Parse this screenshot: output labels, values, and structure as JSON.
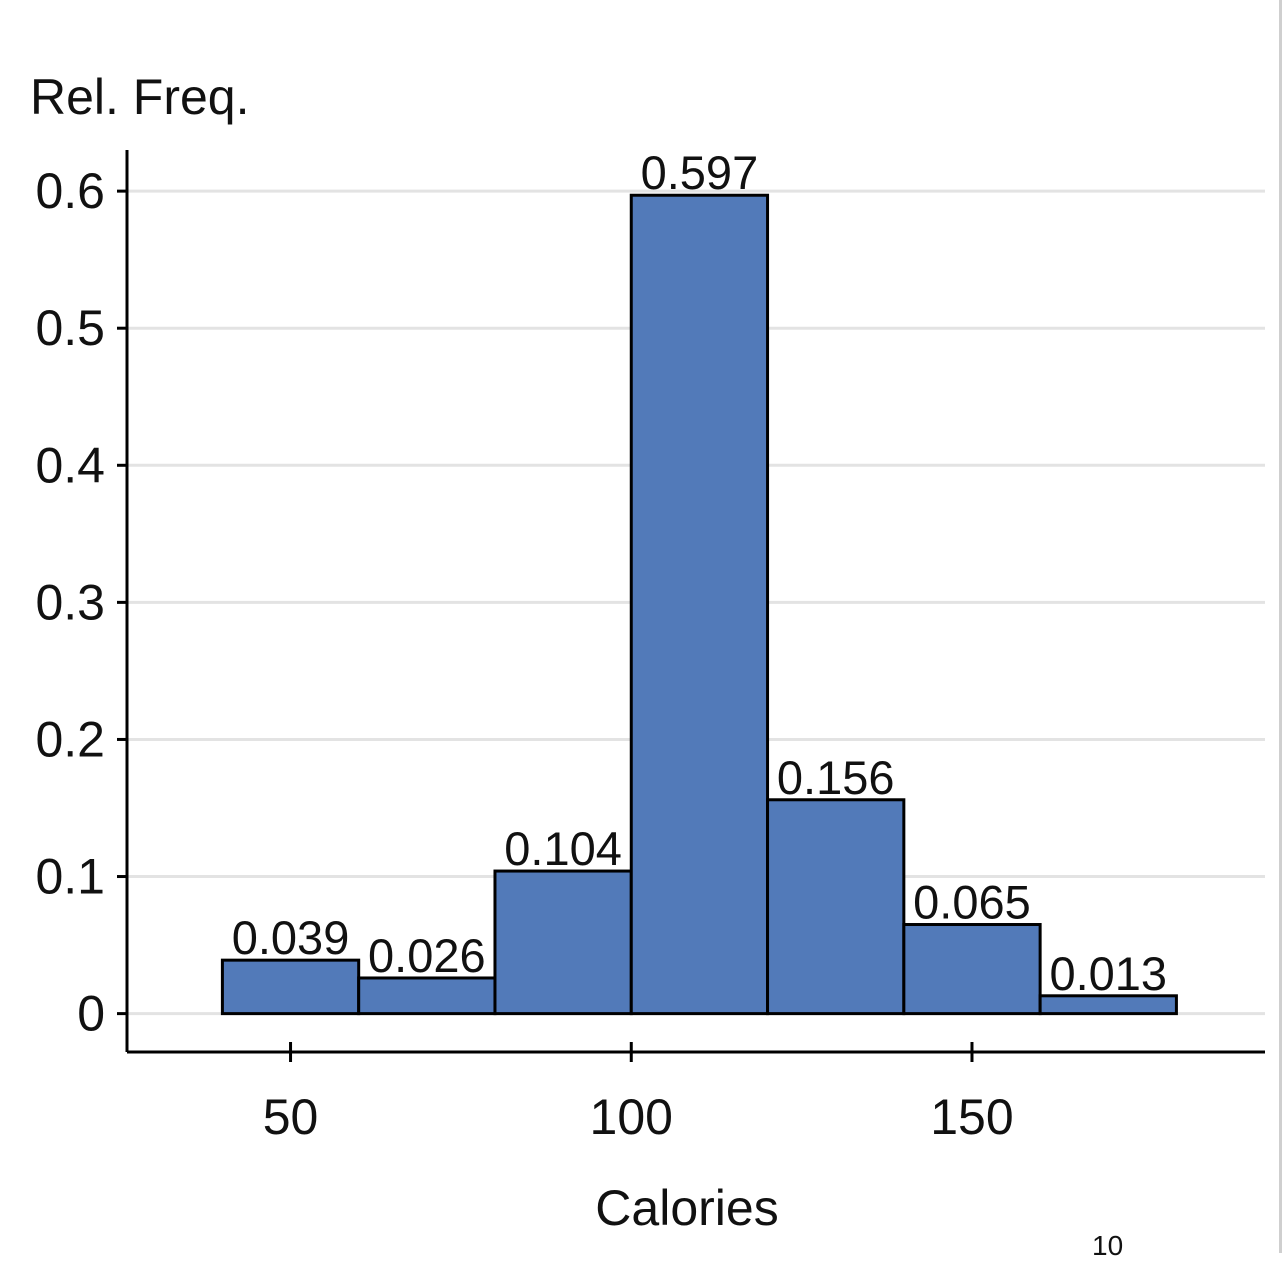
{
  "chart_data": {
    "type": "bar",
    "title": "",
    "xlabel": "Calories",
    "ylabel": "Rel. Freq.",
    "bins": [
      {
        "start": 40,
        "end": 60,
        "value": 0.039,
        "label": "0.039"
      },
      {
        "start": 60,
        "end": 80,
        "value": 0.026,
        "label": "0.026"
      },
      {
        "start": 80,
        "end": 100,
        "value": 0.104,
        "label": "0.104"
      },
      {
        "start": 100,
        "end": 120,
        "value": 0.597,
        "label": "0.597"
      },
      {
        "start": 120,
        "end": 140,
        "value": 0.156,
        "label": "0.156"
      },
      {
        "start": 140,
        "end": 160,
        "value": 0.065,
        "label": "0.065"
      },
      {
        "start": 160,
        "end": 180,
        "value": 0.013,
        "label": "0.013"
      }
    ],
    "xlim": [
      26,
      193
    ],
    "ylim": [
      -0.028,
      0.63
    ],
    "xticks": [
      50,
      100,
      150
    ],
    "xtick_labels": [
      "50",
      "100",
      "150"
    ],
    "yticks": [
      0,
      0.1,
      0.2,
      0.3,
      0.4,
      0.5,
      0.6
    ],
    "ytick_labels": [
      "0",
      "0.1",
      "0.2",
      "0.3",
      "0.4",
      "0.5",
      "0.6"
    ],
    "grid": true,
    "colors": {
      "bar": "#527ab9",
      "bar_edge": "#000000",
      "grid": "#e3e3e3",
      "text": "#111111"
    }
  },
  "page_fragment": "10"
}
